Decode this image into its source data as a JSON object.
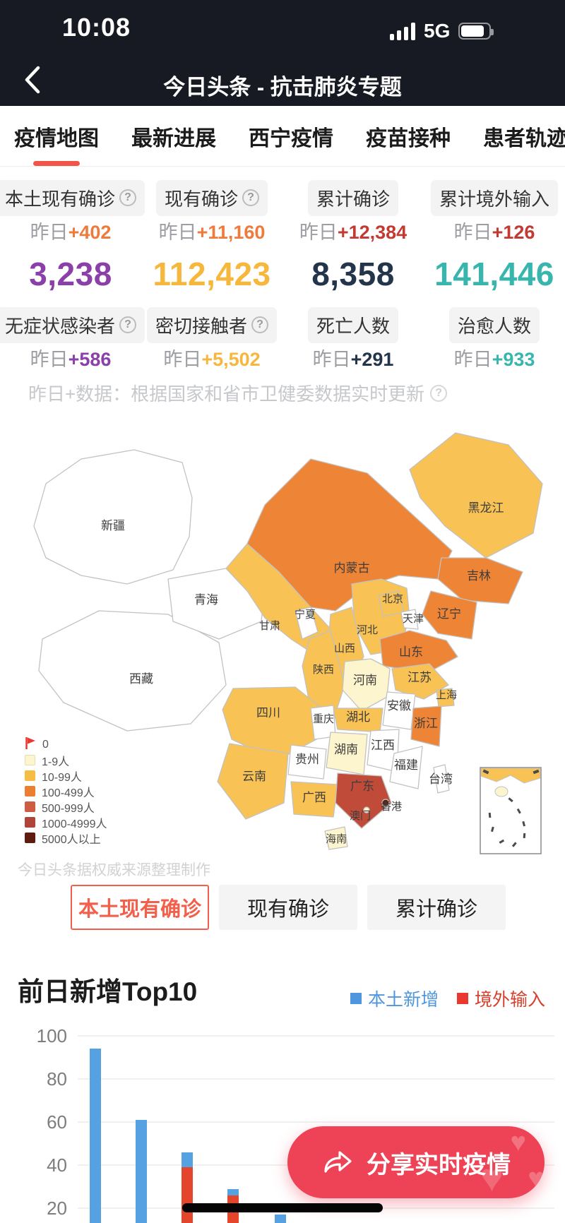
{
  "status_bar": {
    "time": "10:08",
    "network": "5G"
  },
  "nav": {
    "title": "今日头条 - 抗击肺炎专题"
  },
  "tabs": [
    {
      "label": "疫情地图",
      "active": true
    },
    {
      "label": "最新进展",
      "active": false
    },
    {
      "label": "西宁疫情",
      "active": false
    },
    {
      "label": "疫苗接种",
      "active": false
    },
    {
      "label": "患者轨迹",
      "active": false
    }
  ],
  "accent_color": "#f2544a",
  "stats": {
    "columns": [
      {
        "top": {
          "label": "本土现有确诊",
          "help": true,
          "prefix": "昨日",
          "delta": "+402",
          "delta_color": "#ee7b3c"
        },
        "big": {
          "value": "3,238",
          "color": "#8b3fa8"
        },
        "bottom": {
          "label": "无症状感染者",
          "help": true,
          "prefix": "昨日",
          "delta": "+586",
          "delta_color": "#8b3fa8"
        }
      },
      {
        "top": {
          "label": "现有确诊",
          "help": true,
          "prefix": "昨日",
          "delta": "+11,160",
          "delta_color": "#ee7b3c"
        },
        "big": {
          "value": "112,423",
          "color": "#f6b73c"
        },
        "bottom": {
          "label": "密切接触者",
          "help": true,
          "prefix": "昨日",
          "delta": "+5,502",
          "delta_color": "#f6b73c"
        }
      },
      {
        "top": {
          "label": "累计确诊",
          "help": false,
          "prefix": "昨日",
          "delta": "+12,384",
          "delta_color": "#c23b32"
        },
        "big": {
          "value": "8,358",
          "color": "#22354b"
        },
        "bottom": {
          "label": "死亡人数",
          "help": false,
          "prefix": "昨日",
          "delta": "+291",
          "delta_color": "#22354b"
        }
      },
      {
        "top": {
          "label": "累计境外输入",
          "help": false,
          "prefix": "昨日",
          "delta": "+126",
          "delta_color": "#c23b32"
        },
        "big": {
          "value": "141,446",
          "color": "#38b6ae"
        },
        "bottom": {
          "label": "治愈人数",
          "help": false,
          "prefix": "昨日",
          "delta": "+933",
          "delta_color": "#38b6ae"
        }
      }
    ]
  },
  "note": "昨日+数据：根据国家和省市卫健委数据实时更新",
  "map": {
    "legend": [
      {
        "label": "0",
        "swatch": "flag",
        "color": "#e8392f",
        "fill": "#ffffff"
      },
      {
        "label": "1-9人",
        "swatch": "square",
        "color": "#fdf5cd",
        "fill": "#fdf5cd"
      },
      {
        "label": "10-99人",
        "swatch": "square",
        "color": "#f6bd45",
        "fill": "#f8c254"
      },
      {
        "label": "100-499人",
        "swatch": "square",
        "color": "#ec7e31",
        "fill": "#ee8435"
      },
      {
        "label": "500-999人",
        "swatch": "square",
        "color": "#cd5c43",
        "fill": "#cd5c43"
      },
      {
        "label": "1000-4999人",
        "swatch": "square",
        "color": "#b04438",
        "fill": "#bf4b38"
      },
      {
        "label": "5000人以上",
        "swatch": "square",
        "color": "#5f1b10",
        "fill": "#5f1b10"
      }
    ],
    "provinces": [
      {
        "name": "新疆",
        "level": "0"
      },
      {
        "name": "西藏",
        "level": "0"
      },
      {
        "name": "青海",
        "level": "0"
      },
      {
        "name": "宁夏",
        "level": "0"
      },
      {
        "name": "天津",
        "level": "0"
      },
      {
        "name": "重庆",
        "level": "0"
      },
      {
        "name": "贵州",
        "level": "0"
      },
      {
        "name": "安徽",
        "level": "0"
      },
      {
        "name": "江西",
        "level": "0"
      },
      {
        "name": "福建",
        "level": "0"
      },
      {
        "name": "台湾",
        "level": "0"
      },
      {
        "name": "河南",
        "level": "1-9人"
      },
      {
        "name": "湖南",
        "level": "1-9人"
      },
      {
        "name": "海南",
        "level": "1-9人"
      },
      {
        "name": "澳门",
        "level": "1-9人"
      },
      {
        "name": "黑龙江",
        "level": "10-99人"
      },
      {
        "name": "北京",
        "level": "10-99人"
      },
      {
        "name": "河北",
        "level": "10-99人"
      },
      {
        "name": "山西",
        "level": "10-99人"
      },
      {
        "name": "甘肃",
        "level": "10-99人"
      },
      {
        "name": "陕西",
        "level": "10-99人"
      },
      {
        "name": "四川",
        "level": "10-99人"
      },
      {
        "name": "云南",
        "level": "10-99人"
      },
      {
        "name": "广西",
        "level": "10-99人"
      },
      {
        "name": "湖北",
        "level": "10-99人"
      },
      {
        "name": "江苏",
        "level": "10-99人"
      },
      {
        "name": "上海",
        "level": "10-99人"
      },
      {
        "name": "内蒙古",
        "level": "100-499人"
      },
      {
        "name": "吉林",
        "level": "100-499人"
      },
      {
        "name": "辽宁",
        "level": "100-499人"
      },
      {
        "name": "山东",
        "level": "100-499人"
      },
      {
        "name": "浙江",
        "level": "100-499人"
      },
      {
        "name": "广东",
        "level": "1000-4999人"
      },
      {
        "name": "香港",
        "level": "5000人以上"
      }
    ],
    "watermark": "今日头条据权威来源整理制作"
  },
  "map_buttons": [
    {
      "label": "本土现有确诊",
      "active": true
    },
    {
      "label": "现有确诊",
      "active": false
    },
    {
      "label": "累计确诊",
      "active": false
    }
  ],
  "chart_data": {
    "type": "bar",
    "stacked": true,
    "title": "前日新增Top10",
    "categories": [
      "",
      "",
      "",
      "",
      ""
    ],
    "series": [
      {
        "name": "境外输入",
        "color": "#e4462b",
        "values": [
          0,
          0,
          39,
          26,
          0
        ]
      },
      {
        "name": "本土新增",
        "color": "#56a1e1",
        "values": [
          94,
          61,
          7,
          3,
          17
        ]
      }
    ],
    "legend": [
      {
        "label": "本土新增",
        "color": "#4e96dd",
        "text_color": "#4e96dd"
      },
      {
        "label": "境外输入",
        "color": "#e8392f",
        "text_color": "#d6402c"
      }
    ],
    "y_ticks": [
      100,
      80,
      60,
      40,
      20
    ],
    "ylim": [
      0,
      100
    ],
    "grid": true,
    "legend_position": "top-right",
    "visible_categories": 5
  },
  "share_button": {
    "label": "分享实时疫情"
  }
}
